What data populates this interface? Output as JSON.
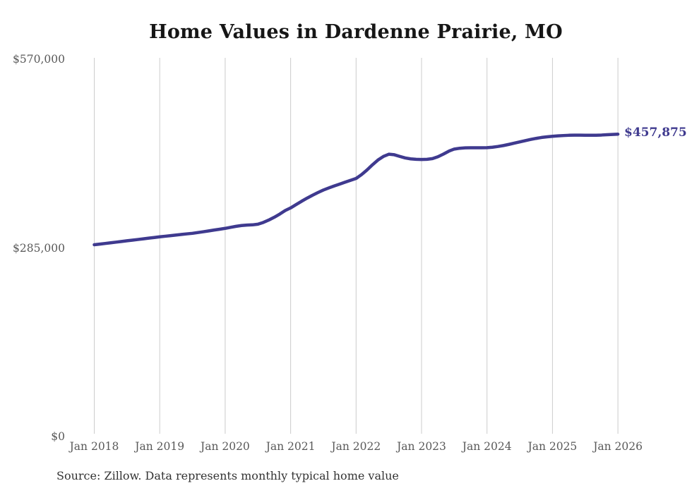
{
  "page": {
    "title": "Home Values in Dardenne Prairie, MO",
    "source_note": "Source: Zillow. Data represents monthly typical home value"
  },
  "colors": {
    "line": "#3f3a8f",
    "end_label": "#3f3a8f",
    "grid": "#cccccc",
    "axis_text": "#595959",
    "title_text": "#161616",
    "source_text": "#333333",
    "background": "#ffffff"
  },
  "chart_data": {
    "type": "line",
    "title": "Home Values in Dardenne Prairie, MO",
    "xlabel": "",
    "ylabel": "",
    "x_tick_labels": [
      "Jan 2018",
      "Jan 2019",
      "Jan 2020",
      "Jan 2021",
      "Jan 2022",
      "Jan 2023",
      "Jan 2024",
      "Jan 2025",
      "Jan 2026"
    ],
    "y_ticks": [
      0,
      285000,
      570000
    ],
    "y_tick_labels": [
      "$0",
      "$285,000",
      "$570,000"
    ],
    "ylim": [
      0,
      570000
    ],
    "grid": "vertical-only",
    "legend": "none",
    "series": [
      {
        "name": "Typical home value",
        "start": "2018-01",
        "frequency": "monthly",
        "values": [
          290900,
          291800,
          292800,
          293800,
          294800,
          295800,
          296800,
          297800,
          298800,
          299800,
          300800,
          301800,
          302800,
          303700,
          304600,
          305500,
          306400,
          307300,
          308100,
          309300,
          310500,
          311800,
          313100,
          314300,
          315600,
          317200,
          318700,
          319900,
          320600,
          320900,
          321900,
          324600,
          328200,
          332400,
          337200,
          342500,
          346500,
          351500,
          356500,
          361200,
          365600,
          369700,
          373500,
          376700,
          379700,
          382500,
          385400,
          388200,
          391000,
          396800,
          403800,
          411600,
          418800,
          424200,
          427600,
          426800,
          424300,
          422000,
          420600,
          419900,
          419600,
          419900,
          421000,
          423800,
          427800,
          432200,
          435400,
          436600,
          437200,
          437400,
          437400,
          437400,
          437500,
          438200,
          439300,
          440700,
          442400,
          444300,
          446200,
          448100,
          449900,
          451500,
          452900,
          453900,
          454700,
          455300,
          455800,
          456200,
          456400,
          456400,
          456300,
          456200,
          456300,
          456600,
          457100,
          457500,
          457875
        ]
      }
    ],
    "last_value": 457875,
    "last_value_label": "$457,875"
  }
}
